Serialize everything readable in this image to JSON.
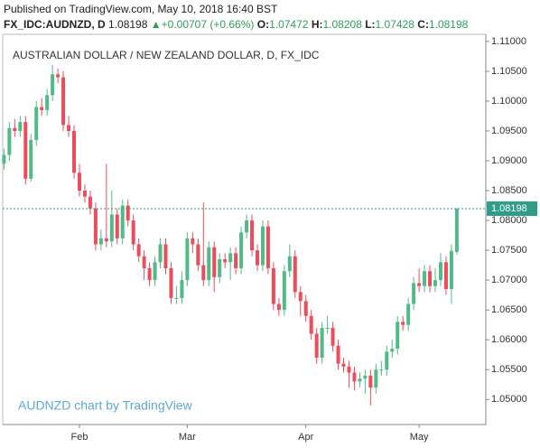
{
  "published": "Published on TradingView.com, May 10, 2018 16:40 BST",
  "symbol": "FX_IDC:AUDNZD, D",
  "change": "+0.00707 (+0.66%)",
  "ohlc_labels": [
    "O:",
    "H:",
    "L:",
    "C:"
  ],
  "watermark": "AUDNZD chart by TradingView",
  "chart_data": {
    "type": "candlestick",
    "title": "AUSTRALIAN DOLLAR / NEW ZEALAND DOLLAR, D, FX_IDC",
    "categories": [
      null,
      null,
      null,
      null,
      null,
      null,
      null,
      null,
      null,
      null,
      null,
      null,
      null,
      null,
      "Feb",
      null,
      null,
      null,
      null,
      null,
      null,
      null,
      null,
      null,
      null,
      null,
      null,
      null,
      null,
      null,
      null,
      null,
      null,
      null,
      "Mar",
      null,
      null,
      null,
      null,
      null,
      null,
      null,
      null,
      null,
      null,
      null,
      null,
      null,
      null,
      null,
      null,
      null,
      null,
      null,
      null,
      null,
      "Apr",
      null,
      null,
      null,
      null,
      null,
      null,
      null,
      null,
      null,
      null,
      null,
      null,
      null,
      null,
      null,
      null,
      null,
      null,
      null,
      null,
      "May",
      null,
      null,
      null,
      null,
      null,
      null,
      null
    ],
    "open": [
      1.0895,
      1.091,
      1.0955,
      1.095,
      1.0965,
      1.087,
      1.0935,
      1.099,
      1.0985,
      1.101,
      1.1045,
      1.104,
      1.096,
      1.095,
      1.088,
      1.085,
      1.084,
      1.082,
      1.076,
      1.077,
      1.0765,
      1.081,
      1.077,
      1.0825,
      1.08,
      1.076,
      1.074,
      1.072,
      1.07,
      1.073,
      1.076,
      1.072,
      1.067,
      1.067,
      1.07,
      1.077,
      1.076,
      1.0725,
      1.07,
      1.0755,
      1.0705,
      1.0735,
      1.073,
      1.0745,
      1.072,
      1.078,
      1.08,
      1.075,
      1.0725,
      1.079,
      1.072,
      1.066,
      1.065,
      1.0715,
      1.074,
      1.068,
      1.0665,
      1.064,
      1.061,
      1.057,
      1.062,
      1.062,
      1.059,
      1.056,
      1.0555,
      1.0545,
      1.053,
      1.0535,
      1.054,
      1.052,
      1.055,
      1.055,
      1.058,
      1.0585,
      1.063,
      1.0625,
      1.066,
      1.0695,
      1.069,
      1.0715,
      1.069,
      1.07,
      1.073,
      1.0685,
      1.07472
    ],
    "high": [
      1.092,
      1.0965,
      1.097,
      1.0975,
      1.0975,
      1.0945,
      1.1,
      1.1005,
      1.102,
      1.106,
      1.1055,
      1.105,
      1.0975,
      1.096,
      1.0895,
      1.086,
      1.085,
      1.083,
      1.0785,
      1.0895,
      1.085,
      1.082,
      1.0835,
      1.0835,
      1.081,
      1.077,
      1.075,
      1.073,
      1.074,
      1.077,
      1.077,
      1.073,
      1.069,
      1.0715,
      1.078,
      1.078,
      1.077,
      1.083,
      1.0765,
      1.0765,
      1.0745,
      1.0745,
      1.0755,
      1.0755,
      1.079,
      1.081,
      1.081,
      1.076,
      1.08,
      1.08,
      1.073,
      1.067,
      1.0725,
      1.076,
      1.075,
      1.069,
      1.0675,
      1.065,
      1.062,
      1.063,
      1.064,
      1.063,
      1.06,
      1.057,
      1.0565,
      1.0555,
      1.0545,
      1.055,
      1.055,
      1.056,
      1.0565,
      1.059,
      1.06,
      1.064,
      1.064,
      1.067,
      1.0705,
      1.072,
      1.0725,
      1.0725,
      1.072,
      1.0745,
      1.074,
      1.076,
      1.08208
    ],
    "low": [
      1.0885,
      1.09,
      1.094,
      1.094,
      1.086,
      1.0865,
      1.0925,
      1.0975,
      1.0975,
      1.1,
      1.103,
      1.095,
      1.094,
      1.087,
      1.084,
      1.083,
      1.081,
      1.075,
      1.075,
      1.0755,
      1.0755,
      1.076,
      1.076,
      1.079,
      1.075,
      1.073,
      1.07,
      1.069,
      1.069,
      1.072,
      1.071,
      1.066,
      1.066,
      1.066,
      1.069,
      1.0745,
      1.0715,
      1.069,
      1.069,
      1.068,
      1.0695,
      1.072,
      1.07,
      1.071,
      1.071,
      1.077,
      1.074,
      1.0715,
      1.0715,
      1.071,
      1.065,
      1.064,
      1.064,
      1.0705,
      1.067,
      1.064,
      1.063,
      1.06,
      1.056,
      1.056,
      1.061,
      1.058,
      1.055,
      1.0545,
      1.052,
      1.0515,
      1.052,
      1.051,
      1.049,
      1.051,
      1.054,
      1.054,
      1.057,
      1.0575,
      1.0615,
      1.0615,
      1.065,
      1.068,
      1.068,
      1.068,
      1.068,
      1.069,
      1.0675,
      1.066,
      1.07428
    ],
    "close": [
      1.091,
      1.0955,
      1.095,
      1.0965,
      1.087,
      1.0935,
      1.099,
      1.0985,
      1.101,
      1.1045,
      1.104,
      1.096,
      1.095,
      1.088,
      1.085,
      1.084,
      1.082,
      1.076,
      1.077,
      1.0765,
      1.081,
      1.077,
      1.0825,
      1.08,
      1.076,
      1.074,
      1.072,
      1.07,
      1.073,
      1.076,
      1.072,
      1.067,
      1.067,
      1.07,
      1.077,
      1.076,
      1.0725,
      1.07,
      1.0755,
      1.0705,
      1.0735,
      1.073,
      1.0745,
      1.072,
      1.078,
      1.08,
      1.075,
      1.0725,
      1.079,
      1.072,
      1.066,
      1.065,
      1.0715,
      1.074,
      1.068,
      1.0665,
      1.064,
      1.061,
      1.057,
      1.062,
      1.062,
      1.059,
      1.056,
      1.0555,
      1.0545,
      1.053,
      1.0535,
      1.054,
      1.052,
      1.055,
      1.055,
      1.058,
      1.0585,
      1.063,
      1.0625,
      1.066,
      1.0695,
      1.069,
      1.0715,
      1.069,
      1.07,
      1.073,
      1.0685,
      1.07491,
      1.08198
    ],
    "up_color": "#53b987",
    "down_color": "#eb4d5c",
    "last_price_line": true,
    "ylim": [
      1.0458,
      1.1112
    ],
    "yticks": [
      {
        "value": 1.05,
        "label": "1.05000"
      },
      {
        "value": 1.055,
        "label": "1.05500"
      },
      {
        "value": 1.06,
        "label": "1.06000"
      },
      {
        "value": 1.065,
        "label": "1.06500"
      },
      {
        "value": 1.07,
        "label": "1.07000"
      },
      {
        "value": 1.075,
        "label": "1.07500"
      },
      {
        "value": 1.08,
        "label": "1.08000"
      },
      {
        "value": 1.085,
        "label": "1.08500"
      },
      {
        "value": 1.09,
        "label": "1.09000"
      },
      {
        "value": 1.095,
        "label": "1.09500"
      },
      {
        "value": 1.1,
        "label": "1.10000"
      },
      {
        "value": 1.105,
        "label": "1.10500"
      },
      {
        "value": 1.11,
        "label": "1.11000"
      }
    ]
  }
}
